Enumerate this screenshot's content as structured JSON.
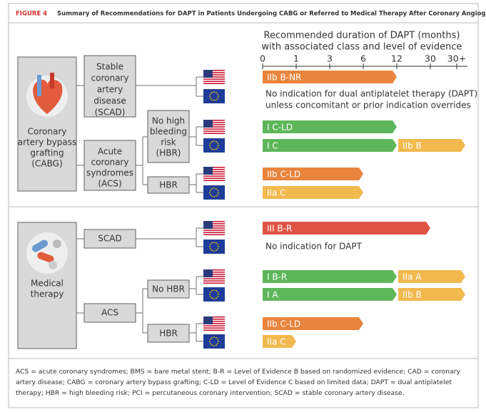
{
  "figure_label": "FIGURE 4",
  "title": "Summary of Recommendations for DAPT in Patients Undergoing CABG or Referred to Medical Therapy After Coronary Angiography",
  "axis": {
    "title": [
      "Recommended duration of DAPT (months)",
      "with associated class and level of evidence"
    ],
    "ticks": [
      "0",
      "1",
      "3",
      "6",
      "12",
      "30",
      "30+"
    ]
  },
  "boxes": [
    {
      "lines": [
        "Coronary",
        "artery bypass",
        "grafting",
        "(CABG)"
      ]
    },
    {
      "lines": [
        "Stable",
        "coronary",
        "artery",
        "disease",
        "(SCAD)"
      ]
    },
    {
      "lines": [
        "Acute",
        "coronary",
        "syndromes",
        "(ACS)"
      ]
    },
    {
      "lines": [
        "No high",
        "bleeding",
        "risk",
        "(HBR)"
      ]
    },
    {
      "lines": [
        "HBR"
      ]
    },
    {
      "lines": [
        "Medical",
        "therapy"
      ]
    },
    {
      "lines": [
        "SCAD"
      ]
    },
    {
      "lines": [
        "ACS"
      ]
    },
    {
      "lines": [
        "No HBR"
      ]
    },
    {
      "lines": [
        "HBR"
      ]
    }
  ],
  "rows": [
    {
      "flag": "US",
      "segments": [
        {
          "label": "IIb B-NR",
          "from": "0",
          "to": "12",
          "color": "#e8843c"
        }
      ]
    },
    {
      "flag": "EU",
      "note": [
        "No indication for dual antiplatelet therapy (DAPT)",
        "unless concomitant or prior indication overrides"
      ]
    },
    {
      "flag": "US",
      "segments": [
        {
          "label": "I C-LD",
          "from": "0",
          "to": "12",
          "color": "#5db75a"
        }
      ]
    },
    {
      "flag": "EU",
      "segments": [
        {
          "label": "I C",
          "from": "0",
          "to": "12",
          "color": "#5db75a"
        },
        {
          "label": "IIb B",
          "from": "12",
          "to": "30+",
          "color": "#f1b94e"
        }
      ]
    },
    {
      "flag": "US",
      "segments": [
        {
          "label": "IIb C-LD",
          "from": "0",
          "to": "6",
          "color": "#e8843c"
        }
      ]
    },
    {
      "flag": "EU",
      "segments": [
        {
          "label": "IIa C",
          "from": "0",
          "to": "6",
          "color": "#f1b94e"
        }
      ]
    },
    {
      "flag": "US",
      "segments": [
        {
          "label": "III B-R",
          "from": "0",
          "to": "30",
          "color": "#de5443"
        }
      ]
    },
    {
      "flag": "EU",
      "note": [
        "No indication for DAPT"
      ]
    },
    {
      "flag": "US",
      "segments": [
        {
          "label": "I B-R",
          "from": "0",
          "to": "12",
          "color": "#5db75a"
        },
        {
          "label": "IIa A",
          "from": "12",
          "to": "30+",
          "color": "#f1b94e"
        }
      ]
    },
    {
      "flag": "EU",
      "segments": [
        {
          "label": "I A",
          "from": "0",
          "to": "12",
          "color": "#5db75a"
        },
        {
          "label": "IIb B",
          "from": "12",
          "to": "30+",
          "color": "#f1b94e"
        }
      ]
    },
    {
      "flag": "US",
      "segments": [
        {
          "label": "IIb C-LD",
          "from": "0",
          "to": "6",
          "color": "#e8843c"
        }
      ]
    },
    {
      "flag": "EU",
      "segments": [
        {
          "label": "IIa C",
          "from": "0",
          "to": "1",
          "color": "#f1b94e"
        }
      ]
    }
  ],
  "footnote": "ACS = acute coronary syndromes; BMS = bare metal stent; B-R = Level of Evidence B based on randomized evidence; CAD = coronary artery disease; CABG = coronary artery bypass grafting; C-LD = Level of Evidence C based on limited data; DAPT = dual antiplatelet therapy; HBR = high bleeding risk; PCI = percutaneous coronary intervention; SCAD = stable coronary artery disease."
}
